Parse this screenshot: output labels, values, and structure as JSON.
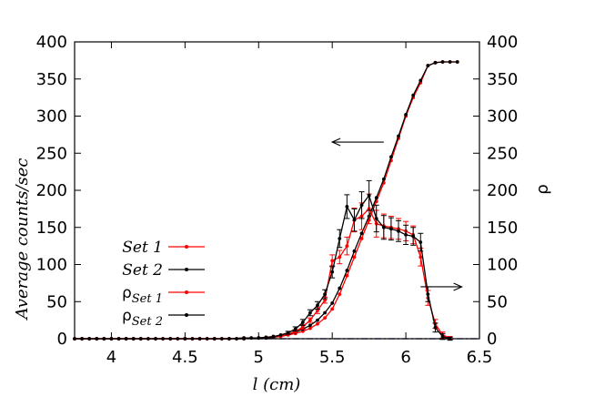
{
  "chart_data": {
    "type": "line",
    "xlabel": "l (cm)",
    "ylabel_left": "Average counts/sec",
    "ylabel_right": "ρ",
    "xlim": [
      3.75,
      6.5
    ],
    "ylim": [
      0,
      400
    ],
    "xticks": [
      4,
      4.5,
      5,
      5.5,
      6,
      6.5
    ],
    "xtick_labels": [
      "4",
      "4.5",
      "5",
      "5.5",
      "6",
      "6.5"
    ],
    "yticks": [
      0,
      50,
      100,
      150,
      200,
      250,
      300,
      350,
      400
    ],
    "ytick_labels": [
      "0",
      "50",
      "100",
      "150",
      "200",
      "250",
      "300",
      "350",
      "400"
    ],
    "colors": {
      "set1": "#ff0000",
      "set2": "#000000",
      "baseline": "#0000cc"
    },
    "baseline": {
      "y": 0,
      "style": "dash-dot"
    },
    "annotations": [
      {
        "type": "arrow",
        "points_to": "left-axis",
        "x_from": 5.85,
        "x_to": 5.5,
        "y": 265
      },
      {
        "type": "arrow",
        "points_to": "right-axis",
        "x_from": 6.1,
        "x_to": 6.38,
        "y": 70
      }
    ],
    "legend": {
      "position": "left-middle"
    },
    "series": [
      {
        "name": "Set 1",
        "label_main": "Set 1",
        "label_sub": "",
        "color": "#ff0000",
        "x": [
          3.75,
          3.8,
          3.85,
          3.9,
          3.95,
          4.0,
          4.05,
          4.1,
          4.15,
          4.2,
          4.25,
          4.3,
          4.35,
          4.4,
          4.45,
          4.5,
          4.55,
          4.6,
          4.65,
          4.7,
          4.75,
          4.8,
          4.85,
          4.9,
          4.95,
          5.0,
          5.05,
          5.1,
          5.15,
          5.2,
          5.25,
          5.3,
          5.35,
          5.4,
          5.45,
          5.5,
          5.55,
          5.6,
          5.65,
          5.7,
          5.75,
          5.8,
          5.85,
          5.9,
          5.95,
          6.0,
          6.05,
          6.1,
          6.15,
          6.2,
          6.25,
          6.3,
          6.35
        ],
        "y": [
          0,
          0,
          0,
          0,
          0,
          0,
          0,
          0,
          0,
          0,
          0,
          0,
          0,
          0,
          0,
          0,
          0,
          0,
          0,
          0,
          0,
          0,
          0,
          0,
          1,
          1,
          1,
          2,
          3,
          5,
          7,
          10,
          14,
          20,
          28,
          40,
          60,
          85,
          110,
          135,
          160,
          185,
          210,
          240,
          270,
          300,
          325,
          345,
          368,
          372,
          373,
          373,
          373
        ],
        "err": [
          0,
          0,
          0,
          0,
          0,
          0,
          0,
          0,
          0,
          0,
          0,
          0,
          0,
          0,
          0,
          0,
          0,
          0,
          0,
          0,
          0,
          0,
          0,
          0,
          0,
          0,
          0,
          0,
          0,
          0,
          0,
          0,
          0,
          0,
          0,
          0,
          0,
          0,
          0,
          0,
          0,
          0,
          0,
          0,
          0,
          0,
          0,
          0,
          0,
          0,
          0,
          0,
          0
        ]
      },
      {
        "name": "Set 2",
        "label_main": "Set 2",
        "label_sub": "",
        "color": "#000000",
        "x": [
          3.75,
          3.8,
          3.85,
          3.9,
          3.95,
          4.0,
          4.05,
          4.1,
          4.15,
          4.2,
          4.25,
          4.3,
          4.35,
          4.4,
          4.45,
          4.5,
          4.55,
          4.6,
          4.65,
          4.7,
          4.75,
          4.8,
          4.85,
          4.9,
          4.95,
          5.0,
          5.05,
          5.1,
          5.15,
          5.2,
          5.25,
          5.3,
          5.35,
          5.4,
          5.45,
          5.5,
          5.55,
          5.6,
          5.65,
          5.7,
          5.75,
          5.8,
          5.85,
          5.9,
          5.95,
          6.0,
          6.05,
          6.1,
          6.15,
          6.2,
          6.25,
          6.3,
          6.35
        ],
        "y": [
          0,
          0,
          0,
          0,
          0,
          0,
          0,
          0,
          0,
          0,
          0,
          0,
          0,
          0,
          0,
          0,
          0,
          0,
          0,
          0,
          0,
          0,
          0,
          0,
          1,
          1,
          1,
          2,
          4,
          6,
          9,
          13,
          18,
          25,
          35,
          48,
          68,
          92,
          118,
          142,
          165,
          190,
          215,
          245,
          273,
          302,
          328,
          348,
          368,
          372,
          373,
          373,
          373
        ],
        "err": [
          0,
          0,
          0,
          0,
          0,
          0,
          0,
          0,
          0,
          0,
          0,
          0,
          0,
          0,
          0,
          0,
          0,
          0,
          0,
          0,
          0,
          0,
          0,
          0,
          0,
          0,
          0,
          0,
          0,
          0,
          0,
          0,
          0,
          0,
          0,
          0,
          0,
          0,
          0,
          0,
          0,
          0,
          0,
          0,
          0,
          0,
          0,
          0,
          0,
          0,
          0,
          0,
          0
        ]
      },
      {
        "name": "ρSet 1",
        "label_main": "ρ",
        "label_sub": "Set 1",
        "color": "#ff0000",
        "x": [
          3.75,
          3.8,
          3.85,
          3.9,
          3.95,
          4.0,
          4.05,
          4.1,
          4.15,
          4.2,
          4.3,
          4.4,
          4.5,
          4.6,
          4.7,
          4.8,
          4.9,
          5.0,
          5.05,
          5.1,
          5.15,
          5.2,
          5.25,
          5.3,
          5.35,
          5.4,
          5.45,
          5.5,
          5.55,
          5.6,
          5.65,
          5.7,
          5.75,
          5.8,
          5.85,
          5.9,
          5.95,
          6.0,
          6.05,
          6.1,
          6.15,
          6.2,
          6.25,
          6.3
        ],
        "y": [
          0,
          0,
          0,
          0,
          0,
          0,
          0,
          0,
          0,
          0,
          0,
          0,
          0,
          0,
          0,
          0,
          1,
          1,
          2,
          3,
          4,
          6,
          10,
          16,
          25,
          38,
          52,
          105,
          110,
          125,
          160,
          165,
          175,
          155,
          152,
          150,
          148,
          145,
          140,
          110,
          55,
          20,
          5,
          1
        ],
        "err": [
          0,
          0,
          0,
          0,
          0,
          0,
          0,
          0,
          0,
          0,
          0,
          0,
          0,
          0,
          0,
          0,
          0,
          0,
          0,
          0,
          0,
          0,
          2,
          3,
          3,
          4,
          4,
          8,
          9,
          12,
          16,
          18,
          20,
          18,
          16,
          15,
          14,
          13,
          12,
          12,
          10,
          6,
          4,
          2
        ]
      },
      {
        "name": "ρSet 2",
        "label_main": "ρ",
        "label_sub": "Set 2",
        "color": "#000000",
        "x": [
          3.75,
          3.8,
          3.85,
          3.9,
          3.95,
          4.0,
          4.05,
          4.1,
          4.15,
          4.2,
          4.3,
          4.4,
          4.5,
          4.6,
          4.7,
          4.8,
          4.9,
          5.0,
          5.05,
          5.1,
          5.15,
          5.2,
          5.25,
          5.3,
          5.35,
          5.4,
          5.45,
          5.5,
          5.55,
          5.6,
          5.65,
          5.7,
          5.75,
          5.8,
          5.85,
          5.9,
          5.95,
          6.0,
          6.05,
          6.1,
          6.15,
          6.2,
          6.25,
          6.3
        ],
        "y": [
          0,
          0,
          0,
          0,
          0,
          0,
          0,
          0,
          0,
          0,
          0,
          0,
          0,
          0,
          0,
          0,
          1,
          1,
          2,
          3,
          5,
          8,
          13,
          22,
          35,
          45,
          60,
          90,
          135,
          178,
          160,
          180,
          193,
          162,
          150,
          148,
          145,
          140,
          138,
          130,
          60,
          15,
          3,
          0
        ],
        "err": [
          0,
          0,
          0,
          0,
          0,
          0,
          0,
          0,
          0,
          0,
          0,
          0,
          0,
          0,
          0,
          0,
          0,
          0,
          0,
          0,
          0,
          2,
          3,
          4,
          4,
          5,
          6,
          8,
          12,
          16,
          15,
          18,
          20,
          18,
          16,
          15,
          14,
          13,
          12,
          12,
          10,
          6,
          4,
          2
        ]
      }
    ]
  }
}
